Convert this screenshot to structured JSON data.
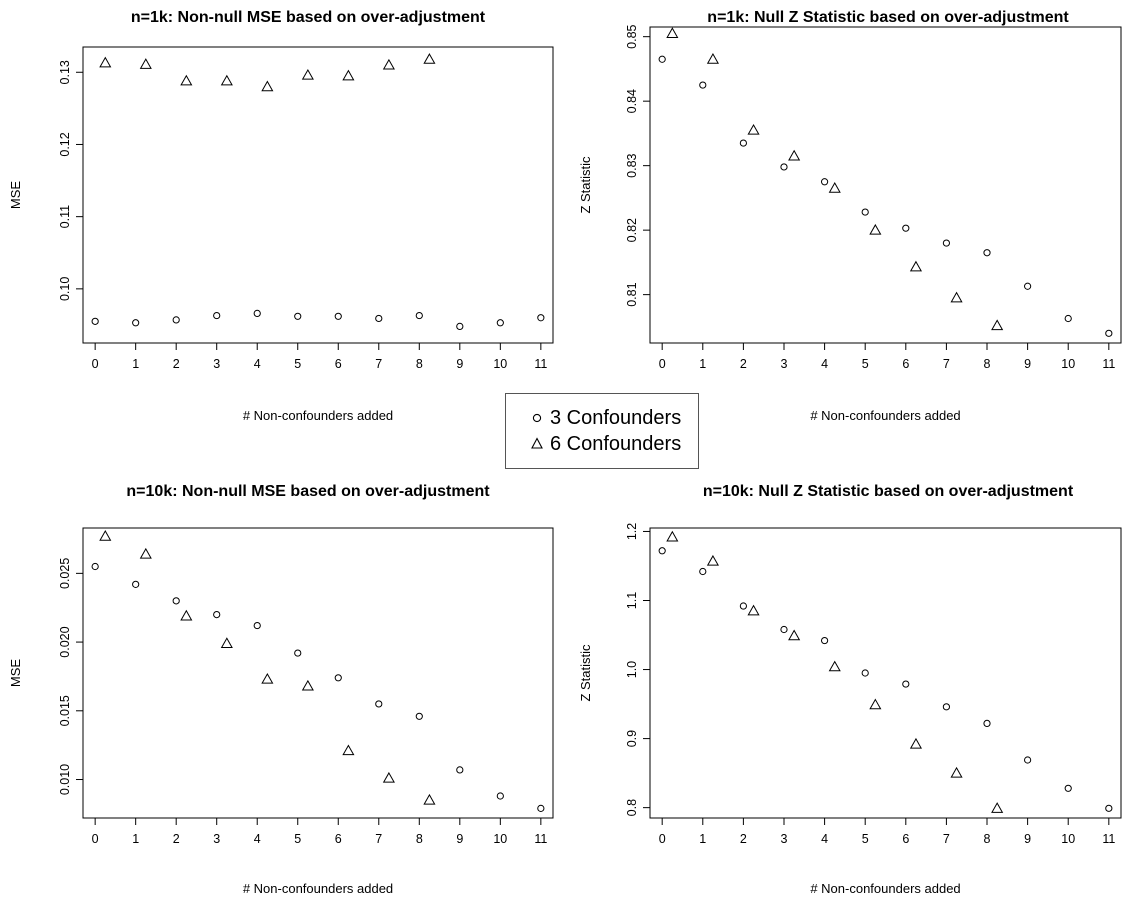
{
  "chart_data": [
    {
      "type": "scatter",
      "title": "n=1k: Non-null MSE based on over-adjustment",
      "xlabel": "# Non-confounders added",
      "ylabel": "MSE",
      "xlim": [
        -0.3,
        11.3
      ],
      "ylim": [
        0.0925,
        0.1335
      ],
      "xticks": [
        0,
        1,
        2,
        3,
        4,
        5,
        6,
        7,
        8,
        9,
        10,
        11
      ],
      "yticks": [
        0.1,
        0.11,
        0.12,
        0.13
      ],
      "ytick_labels": [
        "0.10",
        "0.11",
        "0.12",
        "0.13"
      ],
      "series": [
        {
          "name": "3 Confounders",
          "marker": "circle",
          "x": [
            0,
            1,
            2,
            3,
            4,
            5,
            6,
            7,
            8,
            9,
            10,
            11
          ],
          "values": [
            0.0955,
            0.0953,
            0.0957,
            0.0963,
            0.0966,
            0.0962,
            0.0962,
            0.0959,
            0.0963,
            0.0948,
            0.0953,
            0.096
          ]
        },
        {
          "name": "6 Confounders",
          "marker": "triangle",
          "x": [
            0.25,
            1.25,
            2.25,
            3.25,
            4.25,
            5.25,
            6.25,
            7.25,
            8.25
          ],
          "values": [
            0.1313,
            0.1311,
            0.1288,
            0.1288,
            0.128,
            0.1296,
            0.1295,
            0.131,
            0.1318
          ]
        }
      ]
    },
    {
      "type": "scatter",
      "title": "n=1k: Null Z Statistic based on over-adjustment",
      "xlabel": "# Non-confounders added",
      "ylabel": "Z Statistic",
      "xlim": [
        -0.3,
        11.3
      ],
      "ylim": [
        0.8025,
        0.8515
      ],
      "xticks": [
        0,
        1,
        2,
        3,
        4,
        5,
        6,
        7,
        8,
        9,
        10,
        11
      ],
      "yticks": [
        0.81,
        0.82,
        0.83,
        0.84,
        0.85
      ],
      "ytick_labels": [
        "0.81",
        "0.82",
        "0.83",
        "0.84",
        "0.85"
      ],
      "series": [
        {
          "name": "3 Confounders",
          "marker": "circle",
          "x": [
            0,
            1,
            2,
            3,
            4,
            5,
            6,
            7,
            8,
            9,
            10,
            11
          ],
          "values": [
            0.8465,
            0.8425,
            0.8335,
            0.8298,
            0.8275,
            0.8228,
            0.8203,
            0.818,
            0.8165,
            0.8113,
            0.8063,
            0.804
          ]
        },
        {
          "name": "6 Confounders",
          "marker": "triangle",
          "x": [
            0.25,
            1.25,
            2.25,
            3.25,
            4.25,
            5.25,
            6.25,
            7.25,
            8.25
          ],
          "values": [
            0.8505,
            0.8465,
            0.8355,
            0.8315,
            0.8265,
            0.82,
            0.8143,
            0.8095,
            0.8052
          ]
        }
      ]
    },
    {
      "type": "scatter",
      "title": "n=10k: Non-null MSE based on over-adjustment",
      "xlabel": "# Non-confounders added",
      "ylabel": "MSE",
      "xlim": [
        -0.3,
        11.3
      ],
      "ylim": [
        0.0072,
        0.0283
      ],
      "xticks": [
        0,
        1,
        2,
        3,
        4,
        5,
        6,
        7,
        8,
        9,
        10,
        11
      ],
      "yticks": [
        0.01,
        0.015,
        0.02,
        0.025
      ],
      "ytick_labels": [
        "0.010",
        "0.015",
        "0.020",
        "0.025"
      ],
      "series": [
        {
          "name": "3 Confounders",
          "marker": "circle",
          "x": [
            0,
            1,
            2,
            3,
            4,
            5,
            6,
            7,
            8,
            9,
            10,
            11
          ],
          "values": [
            0.0255,
            0.0242,
            0.023,
            0.022,
            0.0212,
            0.0192,
            0.0174,
            0.0155,
            0.0146,
            0.0107,
            0.0088,
            0.0079
          ]
        },
        {
          "name": "6 Confounders",
          "marker": "triangle",
          "x": [
            0.25,
            1.25,
            2.25,
            3.25,
            4.25,
            5.25,
            6.25,
            7.25,
            8.25
          ],
          "values": [
            0.0277,
            0.0264,
            0.0219,
            0.0199,
            0.0173,
            0.0168,
            0.0121,
            0.0101,
            0.0085
          ]
        }
      ]
    },
    {
      "type": "scatter",
      "title": "n=10k: Null Z Statistic based on over-adjustment",
      "xlabel": "# Non-confounders added",
      "ylabel": "Z Statistic",
      "xlim": [
        -0.3,
        11.3
      ],
      "ylim": [
        0.785,
        1.205
      ],
      "xticks": [
        0,
        1,
        2,
        3,
        4,
        5,
        6,
        7,
        8,
        9,
        10,
        11
      ],
      "yticks": [
        0.8,
        0.9,
        1.0,
        1.1,
        1.2
      ],
      "ytick_labels": [
        "0.8",
        "0.9",
        "1.0",
        "1.1",
        "1.2"
      ],
      "series": [
        {
          "name": "3 Confounders",
          "marker": "circle",
          "x": [
            0,
            1,
            2,
            3,
            4,
            5,
            6,
            7,
            8,
            9,
            10,
            11
          ],
          "values": [
            1.172,
            1.142,
            1.092,
            1.058,
            1.042,
            0.995,
            0.979,
            0.946,
            0.922,
            0.869,
            0.828,
            0.799
          ]
        },
        {
          "name": "6 Confounders",
          "marker": "triangle",
          "x": [
            0.25,
            1.25,
            2.25,
            3.25,
            4.25,
            5.25,
            6.25,
            7.25,
            8.25
          ],
          "values": [
            1.192,
            1.157,
            1.085,
            1.049,
            1.004,
            0.949,
            0.892,
            0.85,
            0.799
          ]
        }
      ]
    }
  ],
  "legend": {
    "items": [
      {
        "label": "3 Confounders",
        "marker": "circle"
      },
      {
        "label": "6 Confounders",
        "marker": "triangle"
      }
    ]
  }
}
